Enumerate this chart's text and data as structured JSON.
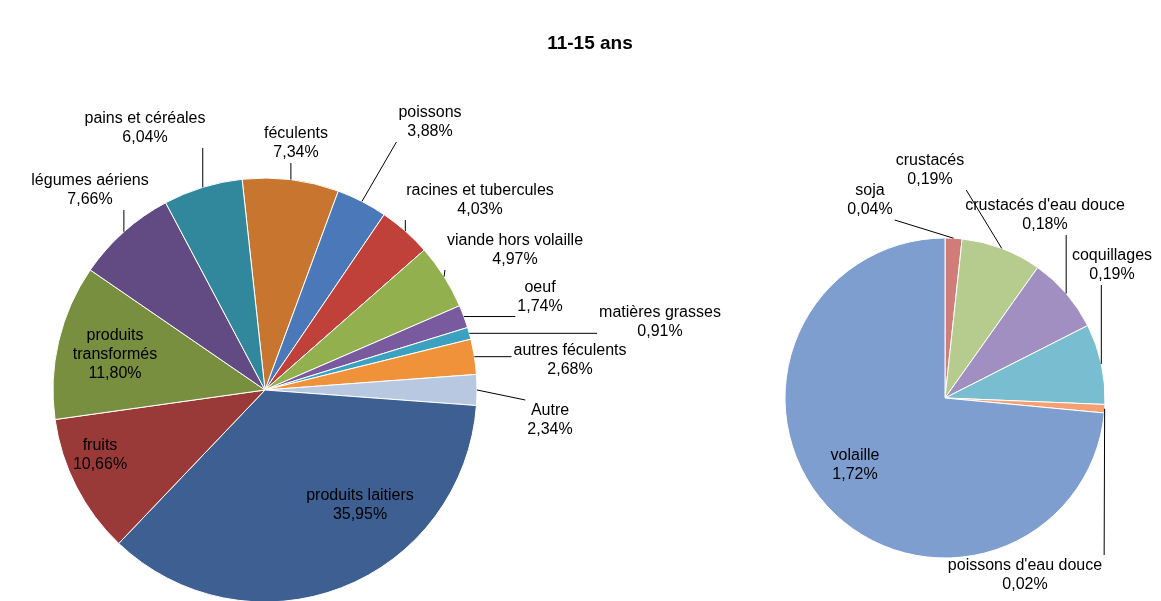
{
  "chart_data": [
    {
      "type": "pie",
      "title": "11-15 ans",
      "categories": [
        "féculents",
        "poissons",
        "racines et tubercules",
        "viande hors volaille",
        "oeuf",
        "matières grasses",
        "autres féculents",
        "Autre",
        "produits laitiers",
        "fruits",
        "produits transformés",
        "légumes aériens",
        "pains et céréales"
      ],
      "values": [
        7.34,
        3.88,
        4.03,
        4.97,
        1.74,
        0.91,
        2.68,
        2.34,
        35.95,
        10.66,
        11.8,
        7.66,
        6.04
      ],
      "value_labels": [
        "7,34%",
        "3,88%",
        "4,03%",
        "4,97%",
        "1,74%",
        "0,91%",
        "2,68%",
        "2,34%",
        "35,95%",
        "10,66%",
        "11,80%",
        "7,66%",
        "6,04%"
      ],
      "colors": [
        "#c8762f",
        "#4a78b8",
        "#c0403a",
        "#92b04e",
        "#7a5a9e",
        "#3aa2c0",
        "#f0923a",
        "#b8c8e0",
        "#3d5f91",
        "#9a3a38",
        "#778f3f",
        "#624b82",
        "#31889c"
      ]
    },
    {
      "type": "pie",
      "categories": [
        "soja",
        "crustacés",
        "crustacés d'eau douce",
        "coquillages",
        "poissons d'eau douce",
        "volaille"
      ],
      "values": [
        0.04,
        0.19,
        0.18,
        0.19,
        0.02,
        1.72
      ],
      "value_labels": [
        "0,04%",
        "0,19%",
        "0,18%",
        "0,19%",
        "0,02%",
        "1,72%"
      ],
      "colors": [
        "#d07c78",
        "#b5cc8e",
        "#a08fc0",
        "#78bdd0",
        "#f4a070",
        "#7f9ed0"
      ]
    }
  ]
}
